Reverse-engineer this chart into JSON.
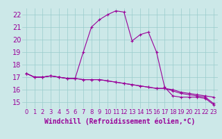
{
  "xlabel": "Windchill (Refroidissement éolien,°C)",
  "background_color": "#cce8e8",
  "grid_color": "#99cccc",
  "line_color": "#990099",
  "x_hours": [
    0,
    1,
    2,
    3,
    4,
    5,
    6,
    7,
    8,
    9,
    10,
    11,
    12,
    13,
    14,
    15,
    16,
    17,
    18,
    19,
    20,
    21,
    22,
    23
  ],
  "line1": [
    17.3,
    17.0,
    17.0,
    17.1,
    17.0,
    16.9,
    16.9,
    19.0,
    21.0,
    21.6,
    22.0,
    22.3,
    22.2,
    19.9,
    20.4,
    20.6,
    19.0,
    16.2,
    15.5,
    15.4,
    15.4,
    15.4,
    15.3,
    14.8
  ],
  "line2": [
    17.3,
    17.0,
    17.0,
    17.1,
    17.0,
    16.9,
    16.9,
    16.8,
    16.8,
    16.8,
    16.7,
    16.6,
    16.5,
    16.4,
    16.3,
    16.2,
    16.1,
    16.1,
    16.0,
    15.8,
    15.7,
    15.6,
    15.5,
    15.4
  ],
  "line3": [
    17.3,
    17.0,
    17.0,
    17.1,
    17.0,
    16.9,
    16.9,
    16.8,
    16.8,
    16.8,
    16.7,
    16.6,
    16.5,
    16.4,
    16.3,
    16.2,
    16.1,
    16.1,
    15.9,
    15.7,
    15.6,
    15.5,
    15.4,
    14.9
  ],
  "ylim": [
    14.5,
    22.5
  ],
  "yticks": [
    15,
    16,
    17,
    18,
    19,
    20,
    21,
    22
  ],
  "tick_fontsize": 7,
  "xlabel_fontsize": 7
}
